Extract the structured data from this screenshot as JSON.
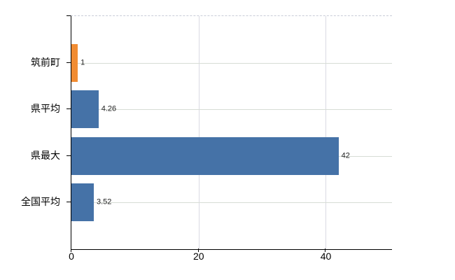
{
  "chart_data": {
    "type": "bar",
    "orientation": "horizontal",
    "title": "",
    "xlabel": "",
    "ylabel": "",
    "categories": [
      "筑前町",
      "県平均",
      "県最大",
      "全国平均"
    ],
    "values": [
      1,
      4.26,
      42,
      3.52
    ],
    "value_labels": [
      "1",
      "4.26",
      "42",
      "3.52"
    ],
    "bar_colors": [
      "#f18c32",
      "#4572a7",
      "#4572a7",
      "#4572a7"
    ],
    "x_ticks": [
      0,
      20,
      40
    ],
    "x_tick_labels": [
      "0",
      "20",
      "40"
    ],
    "xlim": [
      0,
      50.4
    ],
    "grid": true,
    "legend": false
  },
  "colors": {
    "highlight_bar": "#f18c32",
    "default_bar": "#4572a7",
    "axis": "#000000",
    "gridline_horizontal": "#d7ddd5",
    "gridline_vertical": "#dadae2",
    "top_border": "#c9ccd8",
    "value_label_text": "#222222",
    "tick_label_text": "#000000"
  }
}
